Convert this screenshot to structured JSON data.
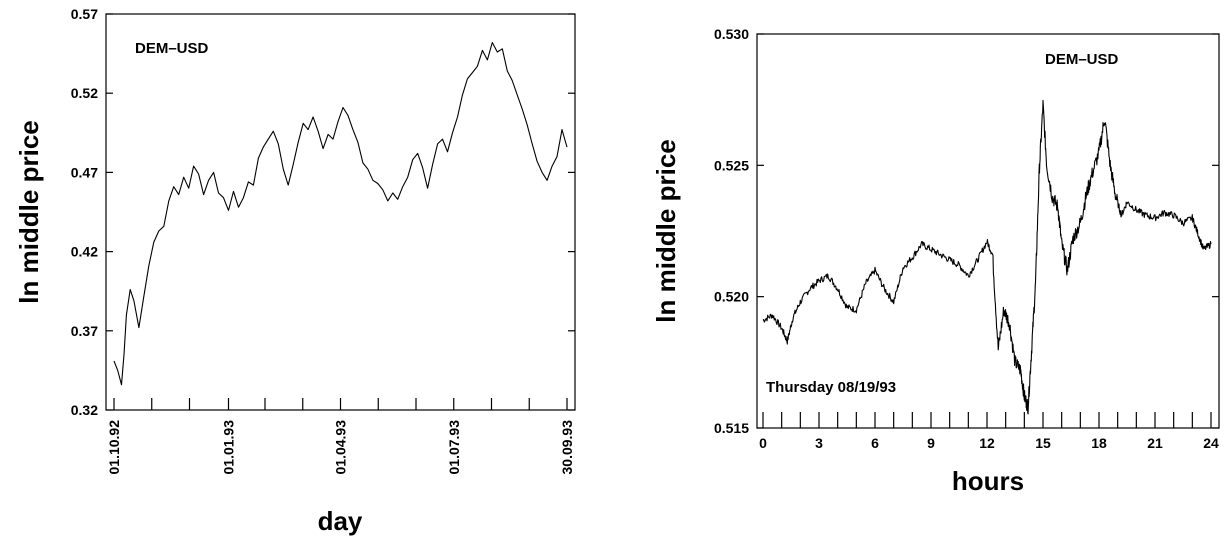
{
  "chart_data": [
    {
      "type": "line",
      "ylabel": "ln middle price",
      "xlabel": "day",
      "annotation": "DEM–USD",
      "ylim": [
        0.32,
        0.57
      ],
      "yticks": [
        "0.32",
        "0.37",
        "0.42",
        "0.47",
        "0.52",
        "0.57"
      ],
      "xticks": [
        "01.10.92",
        "01.01.93",
        "01.04.93",
        "01.07.93",
        "30.09.93"
      ],
      "grid": false,
      "series": [
        {
          "x": [
            0,
            3,
            6,
            8,
            10,
            13,
            16,
            20,
            24,
            28,
            32,
            36,
            40,
            44,
            48,
            52,
            56,
            60,
            64,
            68,
            72,
            76,
            80,
            84,
            88,
            92,
            96,
            100,
            104,
            108,
            112,
            116,
            120,
            124,
            128,
            132,
            136,
            140,
            144,
            148,
            152,
            156,
            160,
            164,
            168,
            172,
            176,
            180,
            184,
            188,
            192,
            196,
            200,
            204,
            208,
            212,
            216,
            220,
            224,
            228,
            232,
            236,
            240,
            244,
            248,
            252,
            256,
            260,
            264,
            268,
            272,
            276,
            280,
            284,
            288,
            292,
            296,
            300,
            304,
            308,
            312,
            316,
            320,
            324,
            328,
            332,
            336,
            340,
            344,
            348,
            352,
            356,
            360,
            364
          ],
          "y": [
            0.351,
            0.345,
            0.336,
            0.355,
            0.38,
            0.396,
            0.389,
            0.372,
            0.392,
            0.411,
            0.426,
            0.433,
            0.436,
            0.452,
            0.461,
            0.456,
            0.467,
            0.46,
            0.474,
            0.469,
            0.456,
            0.465,
            0.47,
            0.457,
            0.454,
            0.446,
            0.458,
            0.448,
            0.454,
            0.464,
            0.462,
            0.479,
            0.486,
            0.491,
            0.496,
            0.488,
            0.472,
            0.462,
            0.475,
            0.489,
            0.501,
            0.497,
            0.505,
            0.496,
            0.485,
            0.494,
            0.491,
            0.502,
            0.511,
            0.506,
            0.497,
            0.489,
            0.476,
            0.472,
            0.465,
            0.463,
            0.459,
            0.452,
            0.457,
            0.453,
            0.461,
            0.467,
            0.478,
            0.482,
            0.473,
            0.46,
            0.475,
            0.488,
            0.491,
            0.483,
            0.495,
            0.505,
            0.519,
            0.529,
            0.533,
            0.537,
            0.547,
            0.541,
            0.552,
            0.546,
            0.548,
            0.534,
            0.528,
            0.519,
            0.51,
            0.5,
            0.488,
            0.477,
            0.47,
            0.465,
            0.474,
            0.48,
            0.497,
            0.486
          ]
        }
      ]
    },
    {
      "type": "line",
      "ylabel": "ln middle price",
      "xlabel": "hours",
      "annotation": "DEM–USD",
      "subtitle": "Thursday 08/19/93",
      "ylim": [
        0.515,
        0.53
      ],
      "xlim": [
        0,
        24
      ],
      "yticks": [
        "0.515",
        "0.520",
        "0.525",
        "0.530"
      ],
      "xticks": [
        "0",
        "3",
        "6",
        "9",
        "12",
        "15",
        "18",
        "21",
        "24"
      ],
      "grid": false,
      "series": [
        {
          "x": [
            0,
            0.5,
            1,
            1.3,
            1.6,
            2,
            2.5,
            3,
            3.5,
            4,
            4.5,
            5,
            5.5,
            6,
            6.5,
            7,
            7.5,
            8,
            8.5,
            9,
            9.5,
            10,
            10.5,
            11,
            11.5,
            12,
            12.3,
            12.6,
            12.9,
            13.2,
            13.5,
            13.8,
            14.0,
            14.2,
            14.4,
            14.6,
            14.8,
            15.0,
            15.2,
            15.5,
            15.8,
            16.0,
            16.3,
            16.6,
            17.0,
            17.3,
            17.6,
            18.0,
            18.3,
            18.6,
            18.9,
            19.2,
            19.5,
            20,
            20.5,
            21,
            21.5,
            22,
            22.5,
            23,
            23.3,
            23.6,
            24
          ],
          "y": [
            0.5191,
            0.5193,
            0.5188,
            0.5183,
            0.5192,
            0.5198,
            0.5203,
            0.5206,
            0.5208,
            0.5203,
            0.5196,
            0.5195,
            0.5205,
            0.521,
            0.5203,
            0.5198,
            0.5211,
            0.5215,
            0.522,
            0.5218,
            0.5216,
            0.5214,
            0.5212,
            0.5208,
            0.5214,
            0.5221,
            0.5216,
            0.518,
            0.5195,
            0.519,
            0.5175,
            0.5172,
            0.5162,
            0.5158,
            0.5181,
            0.5205,
            0.5248,
            0.5273,
            0.525,
            0.5238,
            0.5234,
            0.522,
            0.521,
            0.5222,
            0.5228,
            0.5238,
            0.5246,
            0.5255,
            0.5268,
            0.525,
            0.5238,
            0.5231,
            0.5236,
            0.5233,
            0.5231,
            0.523,
            0.5232,
            0.5231,
            0.5228,
            0.523,
            0.5224,
            0.5218,
            0.522
          ]
        }
      ]
    }
  ]
}
